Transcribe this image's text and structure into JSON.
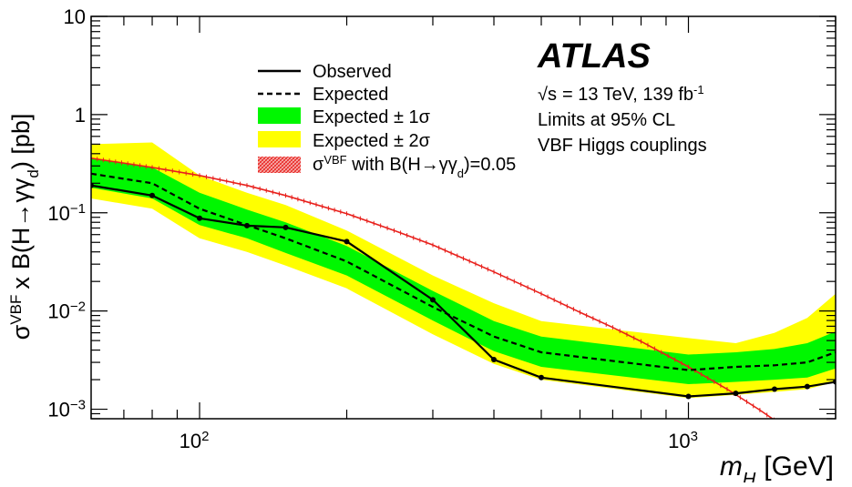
{
  "chart_data": {
    "type": "line",
    "x_scale": "log",
    "y_scale": "log",
    "xlim": [
      60,
      2000
    ],
    "ylim": [
      0.0008,
      10
    ],
    "grid": false,
    "legend_position": "top-center",
    "xlabel": {
      "var": "m",
      "sub": "H",
      "unit": "[GeV]"
    },
    "ylabel": {
      "sigma": "σ",
      "sigma_sup": "VBF",
      "times": "x",
      "branch": "B(H→γγ",
      "gamma_sub": "d",
      "tail": ") [pb]"
    },
    "x_ticks": [
      {
        "value": 100,
        "base": "10",
        "exp": "2"
      },
      {
        "value": 1000,
        "base": "10",
        "exp": "3"
      }
    ],
    "y_ticks": [
      {
        "value": 0.001,
        "base": "10",
        "exp": "−3"
      },
      {
        "value": 0.01,
        "base": "10",
        "exp": "−2"
      },
      {
        "value": 0.1,
        "base": "10",
        "exp": "−1"
      },
      {
        "value": 1,
        "text": "1"
      },
      {
        "value": 10,
        "text": "10"
      }
    ],
    "annotations": {
      "experiment": "ATLAS",
      "energy_sqrt": "√s",
      "energy_rest": "= 13 TeV, 139 fb",
      "energy_sup": "-1",
      "cl": "Limits at 95% CL",
      "model": "VBF Higgs couplings"
    },
    "legend": [
      {
        "key": "observed",
        "label": "Observed"
      },
      {
        "key": "expected",
        "label": "Expected"
      },
      {
        "key": "one_sigma",
        "label": "Expected ± 1σ"
      },
      {
        "key": "two_sigma",
        "label": "Expected ± 2σ"
      },
      {
        "key": "theory",
        "label_pre": "σ",
        "label_sup": "VBF",
        "label_mid": " with B(H→γγ",
        "label_sub": "d",
        "label_post": ")=0.05"
      }
    ],
    "colors": {
      "observed": "#000000",
      "expected": "#000000",
      "one_sigma": "#00f700",
      "two_sigma": "#ffff00",
      "theory": "#e8201c"
    },
    "series": {
      "observed": {
        "x": [
          60,
          80,
          100,
          125,
          150,
          200,
          300,
          400,
          500,
          1000,
          1250,
          1500,
          1750,
          2000
        ],
        "y": [
          0.19,
          0.15,
          0.088,
          0.074,
          0.071,
          0.051,
          0.013,
          0.0032,
          0.0021,
          0.00135,
          0.00145,
          0.0016,
          0.0017,
          0.0019
        ]
      },
      "expected": {
        "x": [
          60,
          80,
          100,
          125,
          150,
          200,
          300,
          400,
          500,
          1000,
          1250,
          1500,
          1750,
          2000
        ],
        "y": [
          0.25,
          0.2,
          0.11,
          0.075,
          0.055,
          0.032,
          0.011,
          0.0055,
          0.0038,
          0.0025,
          0.0027,
          0.0028,
          0.003,
          0.0038
        ]
      },
      "one_sigma": {
        "x": [
          60,
          80,
          100,
          125,
          150,
          200,
          300,
          400,
          500,
          1000,
          1250,
          1500,
          1750,
          2000
        ],
        "low": [
          0.18,
          0.14,
          0.075,
          0.055,
          0.039,
          0.023,
          0.008,
          0.0039,
          0.0027,
          0.0018,
          0.0019,
          0.002,
          0.0021,
          0.0026
        ],
        "high": [
          0.36,
          0.29,
          0.16,
          0.108,
          0.08,
          0.046,
          0.016,
          0.0079,
          0.0055,
          0.0036,
          0.0038,
          0.0041,
          0.0047,
          0.0062
        ]
      },
      "two_sigma": {
        "x": [
          60,
          80,
          100,
          125,
          150,
          200,
          300,
          400,
          500,
          1000,
          1250,
          1500,
          1750,
          2000
        ],
        "low": [
          0.14,
          0.11,
          0.055,
          0.04,
          0.029,
          0.017,
          0.0058,
          0.0029,
          0.002,
          0.0013,
          0.0014,
          0.0015,
          0.0016,
          0.0019
        ],
        "high": [
          0.5,
          0.52,
          0.24,
          0.16,
          0.12,
          0.066,
          0.023,
          0.012,
          0.0079,
          0.0053,
          0.0047,
          0.006,
          0.0085,
          0.015
        ]
      },
      "theory": {
        "x": [
          60,
          80,
          100,
          125,
          150,
          200,
          250,
          300,
          400,
          500,
          600,
          700,
          800,
          1000,
          1200,
          1400,
          1600,
          1800
        ],
        "y": [
          0.36,
          0.29,
          0.24,
          0.19,
          0.15,
          0.098,
          0.066,
          0.047,
          0.025,
          0.015,
          0.0097,
          0.0068,
          0.0049,
          0.0027,
          0.0016,
          0.00098,
          0.00062,
          0.0004
        ]
      }
    }
  }
}
